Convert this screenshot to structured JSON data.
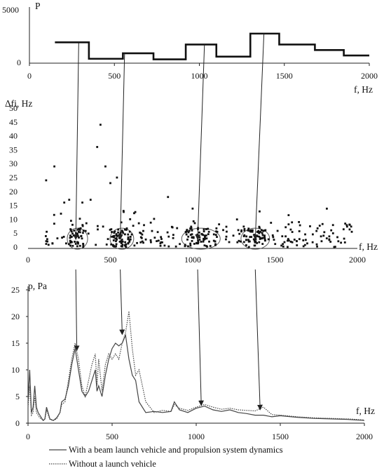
{
  "chart_data": [
    {
      "type": "line",
      "panel": "top",
      "ylabel": "P",
      "xlabel": "f, Hz",
      "xlim": [
        0,
        2000
      ],
      "ylim": [
        0,
        5000
      ],
      "yticks": [
        "0",
        "5000"
      ],
      "xticks": [
        "0",
        "500",
        "1000",
        "1500",
        "2000"
      ],
      "steps": [
        {
          "x0": 150,
          "x1": 350,
          "y": 1900
        },
        {
          "x0": 350,
          "x1": 550,
          "y": 400
        },
        {
          "x0": 550,
          "x1": 730,
          "y": 900
        },
        {
          "x0": 730,
          "x1": 920,
          "y": 350
        },
        {
          "x0": 920,
          "x1": 1100,
          "y": 1700
        },
        {
          "x0": 1100,
          "x1": 1300,
          "y": 600
        },
        {
          "x0": 1300,
          "x1": 1470,
          "y": 2700
        },
        {
          "x0": 1470,
          "x1": 1680,
          "y": 1700
        },
        {
          "x0": 1680,
          "x1": 1850,
          "y": 1200
        },
        {
          "x0": 1850,
          "x1": 2000,
          "y": 700
        }
      ]
    },
    {
      "type": "scatter",
      "panel": "middle",
      "ylabel": "Δfi, Hz",
      "xlabel": "f, Hz",
      "xlim": [
        0,
        2000
      ],
      "ylim": [
        0,
        50
      ],
      "yticks": [
        "0",
        "5",
        "10",
        "15",
        "20",
        "25",
        "30",
        "35",
        "40",
        "45",
        "50"
      ],
      "xticks": [
        "0",
        "500",
        "1000",
        "1500",
        "2000"
      ],
      "notable_points": [
        [
          110,
          24
        ],
        [
          160,
          29
        ],
        [
          200,
          12
        ],
        [
          220,
          16
        ],
        [
          250,
          17
        ],
        [
          270,
          8
        ],
        [
          330,
          16
        ],
        [
          380,
          17
        ],
        [
          420,
          36
        ],
        [
          440,
          44
        ],
        [
          470,
          29
        ],
        [
          500,
          23
        ],
        [
          540,
          25
        ],
        [
          580,
          13
        ],
        [
          620,
          10
        ],
        [
          850,
          18
        ]
      ],
      "clusters": [
        {
          "center": 300,
          "width": 90,
          "count": 35
        },
        {
          "center": 570,
          "width": 110,
          "count": 45
        },
        {
          "center": 1050,
          "width": 200,
          "count": 60
        },
        {
          "center": 1380,
          "width": 140,
          "count": 40
        }
      ],
      "background_points": 230
    },
    {
      "type": "line",
      "panel": "bottom",
      "ylabel": "p, Pa",
      "xlabel": "f, Hz",
      "xlim": [
        0,
        2000
      ],
      "ylim": [
        0,
        25
      ],
      "yticks": [
        "0",
        "5",
        "10",
        "15",
        "20",
        "25"
      ],
      "xticks": [
        "0",
        "500",
        "1000",
        "1500",
        "2000"
      ],
      "x": [
        0,
        10,
        20,
        30,
        40,
        50,
        60,
        70,
        80,
        90,
        100,
        110,
        130,
        150,
        170,
        190,
        200,
        220,
        240,
        260,
        280,
        300,
        320,
        340,
        360,
        380,
        400,
        410,
        420,
        440,
        460,
        480,
        500,
        520,
        540,
        560,
        580,
        600,
        620,
        640,
        660,
        700,
        750,
        800,
        850,
        870,
        900,
        950,
        1000,
        1050,
        1100,
        1150,
        1200,
        1250,
        1300,
        1350,
        1400,
        1450,
        1500,
        1600,
        1700,
        1800,
        1900,
        2000
      ],
      "series": [
        {
          "name": "With a beam launch vehicle and propulsion system dynamics",
          "style": "solid",
          "color": "#444444",
          "values": [
            4,
            10,
            2,
            3,
            7,
            3,
            2,
            1.5,
            1,
            0.5,
            0.8,
            3,
            0.8,
            0.5,
            1,
            2,
            4,
            4.5,
            7,
            11,
            14,
            10,
            6,
            5,
            6,
            8,
            10,
            6,
            7,
            5,
            9,
            12,
            14,
            15,
            14.5,
            15,
            16.5,
            12,
            9,
            8,
            4,
            2,
            2.2,
            2,
            2.2,
            4,
            2.5,
            2,
            2.8,
            3.2,
            2.5,
            2.2,
            2.5,
            2,
            1.8,
            1.5,
            1.5,
            1.2,
            1.4,
            1.1,
            0.9,
            0.8,
            0.7,
            0.5
          ]
        },
        {
          "name": "Without a launch vehicle",
          "style": "dotted",
          "color": "#444444",
          "values": [
            3,
            7,
            1.5,
            2,
            5,
            2,
            1.5,
            1,
            0.8,
            0.5,
            0.7,
            2.5,
            0.7,
            0.5,
            0.8,
            2,
            3.5,
            4,
            8,
            12,
            15,
            12,
            7,
            5,
            8,
            11,
            13,
            7,
            12,
            6,
            11,
            13,
            12,
            13,
            12,
            15,
            17,
            21,
            14,
            9,
            10,
            4,
            2,
            2.4,
            2.2,
            3.5,
            2.8,
            2.4,
            3,
            3.5,
            3,
            2.6,
            2.8,
            2.5,
            2.4,
            2.3,
            3,
            1.6,
            1.5,
            1.2,
            1,
            0.9,
            0.8,
            0.6
          ]
        }
      ]
    }
  ],
  "legend": [
    {
      "label": "With a beam launch vehicle and propulsion system dynamics",
      "style": "solid"
    },
    {
      "label": "Without a launch vehicle",
      "style": "dotted"
    }
  ],
  "arrows": [
    {
      "from_f": 290,
      "to_f": 290
    },
    {
      "from_f": 560,
      "to_f": 560
    },
    {
      "from_f": 1030,
      "to_f": 1030
    },
    {
      "from_f": 1380,
      "to_f": 1380
    }
  ]
}
